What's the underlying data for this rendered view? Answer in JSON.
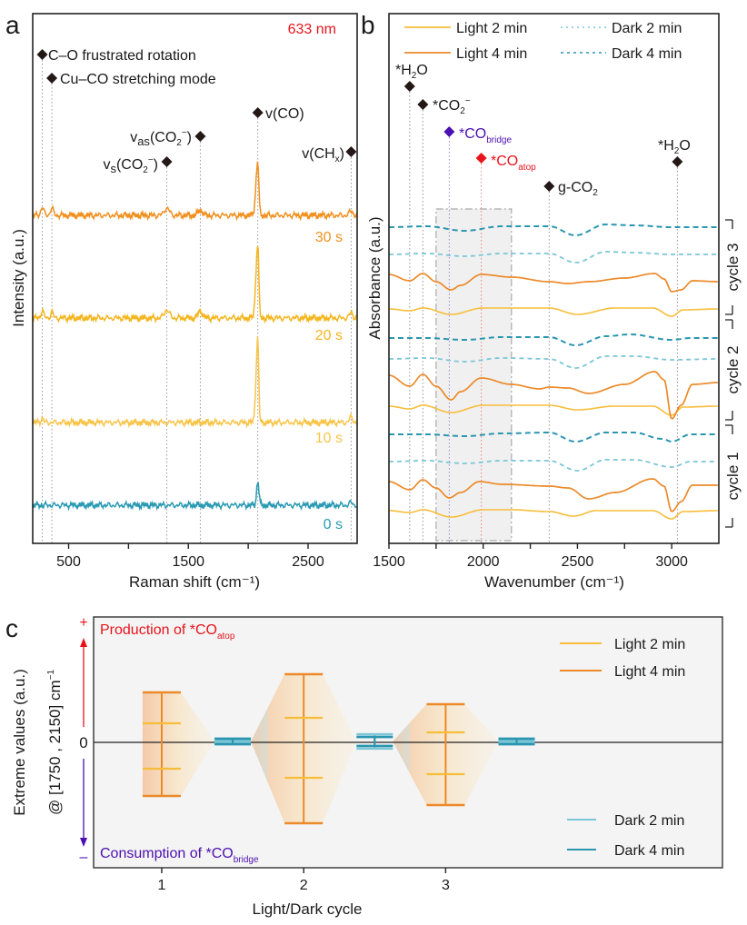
{
  "panel_letters": {
    "a": "a",
    "b": "b",
    "c": "c"
  },
  "colors": {
    "light2": "#f7bd3a",
    "light4": "#ec8a2a",
    "dark2": "#7cc6d8",
    "dark4": "#2a96b0",
    "t30": "#f0901e",
    "t20": "#f5b51e",
    "t10": "#f8c447",
    "t0": "#2a9ab3",
    "red": "#e8141c",
    "purple": "#4b10b0",
    "marker": "#231815"
  },
  "chart_data": [
    {
      "type": "line",
      "panel": "a",
      "title": "633 nm",
      "xlabel": "Raman shift (cm⁻¹)",
      "ylabel": "Intensity (a.u.)",
      "xlim": [
        200,
        2910
      ],
      "ylim": [
        -42,
        541
      ],
      "xticks": [
        500,
        1000,
        1500,
        2000,
        2500
      ],
      "xtick_labels": [
        "500",
        "",
        "1500",
        "",
        "2500"
      ],
      "annotations": [
        {
          "x": 280,
          "label": "C–O frustrated rotation",
          "side": "right"
        },
        {
          "x": 360,
          "label": "Cu–CO stretching mode",
          "side": "right"
        },
        {
          "x": 1320,
          "label": "v",
          "sub": "s",
          "rest": "(CO",
          "sub2": "2",
          "sup": "−",
          "close": ")",
          "side": "left"
        },
        {
          "x": 1600,
          "label": "v",
          "sub": "as",
          "rest": "(CO",
          "sub2": "2",
          "sup": "−",
          "close": ")",
          "side": "left"
        },
        {
          "x": 2080,
          "label": "v(CO)",
          "side": "right"
        },
        {
          "x": 2860,
          "label": "v(CH",
          "sub": "x",
          "close": ")",
          "side": "left"
        }
      ],
      "series": [
        {
          "name": "30 s",
          "offset": 319,
          "peaks": [
            [
              280,
              9,
              18
            ],
            [
              360,
              8,
              18
            ],
            [
              1320,
              8,
              30
            ],
            [
              1600,
              6,
              25
            ],
            [
              2080,
              59,
              12
            ],
            [
              2860,
              5,
              20
            ]
          ]
        },
        {
          "name": "20 s",
          "offset": 206,
          "peaks": [
            [
              280,
              9,
              15
            ],
            [
              360,
              7,
              15
            ],
            [
              1320,
              9,
              30
            ],
            [
              1600,
              8,
              25
            ],
            [
              2080,
              82,
              12
            ],
            [
              2860,
              6,
              20
            ]
          ]
        },
        {
          "name": "10 s",
          "offset": 91,
          "peaks": [
            [
              280,
              5,
              15
            ],
            [
              2080,
              93,
              11
            ],
            [
              2860,
              6,
              20
            ]
          ]
        },
        {
          "name": "0 s",
          "offset": 0,
          "peaks": [
            [
              2080,
              26,
              14
            ],
            [
              2860,
              3,
              20
            ]
          ]
        }
      ]
    },
    {
      "type": "line",
      "panel": "b",
      "xlabel": "Wavenumber (cm⁻¹)",
      "ylabel": "Absorbance (a.u.)",
      "xlim": [
        1500,
        3250
      ],
      "ylim": [
        -36,
        547
      ],
      "xticks": [
        1500,
        1750,
        2000,
        2250,
        2500,
        2750,
        3000
      ],
      "xtick_labels": [
        "1500",
        "",
        "2000",
        "",
        "2500",
        "",
        "3000"
      ],
      "highlight_range": [
        1750,
        2150
      ],
      "legend": [
        "Light 2 min",
        "Light 4 min",
        "Dark 2 min",
        "Dark 4 min"
      ],
      "cycles": [
        "cycle 1",
        "cycle 2",
        "cycle 3"
      ],
      "annotations": [
        {
          "x": 1610,
          "label": "*H",
          "sub": "2",
          "rest": "O",
          "color": "marker"
        },
        {
          "x": 1680,
          "label": "*CO",
          "sub": "2",
          "sup": "−",
          "color": "marker"
        },
        {
          "x": 1820,
          "label": "*CO",
          "sub": "bridge",
          "color": "purple"
        },
        {
          "x": 1990,
          "label": "*CO",
          "sub": "atop",
          "color": "red"
        },
        {
          "x": 2350,
          "label": "g-CO",
          "sub": "2",
          "color": "marker"
        },
        {
          "x": 3030,
          "label": "*H",
          "sub": "2",
          "rest": "O",
          "color": "marker"
        }
      ],
      "series": [
        {
          "name": "Light 2 min",
          "cycle": 1,
          "offset": 0,
          "points": [
            [
              1500,
              0
            ],
            [
              1610,
              -2
            ],
            [
              1680,
              1
            ],
            [
              1830,
              -7
            ],
            [
              2000,
              1
            ],
            [
              2150,
              1
            ],
            [
              2350,
              -1
            ],
            [
              2480,
              -6
            ],
            [
              2600,
              0
            ],
            [
              2900,
              0
            ],
            [
              3000,
              -9
            ],
            [
              3060,
              -1
            ],
            [
              3250,
              0
            ]
          ]
        },
        {
          "name": "Light 4 min",
          "cycle": 1,
          "offset": 32,
          "points": [
            [
              1500,
              0
            ],
            [
              1610,
              -9
            ],
            [
              1680,
              2
            ],
            [
              1750,
              -7
            ],
            [
              1820,
              -18
            ],
            [
              1880,
              -12
            ],
            [
              1980,
              0
            ],
            [
              2100,
              -3
            ],
            [
              2350,
              -5
            ],
            [
              2450,
              -7
            ],
            [
              2560,
              -19
            ],
            [
              2700,
              -12
            ],
            [
              2900,
              3
            ],
            [
              2960,
              -5
            ],
            [
              3000,
              -33
            ],
            [
              3050,
              -22
            ],
            [
              3110,
              -4
            ],
            [
              3250,
              -4
            ]
          ]
        },
        {
          "name": "Dark 2 min",
          "cycle": 1,
          "offset": 54,
          "points": [
            [
              1500,
              0
            ],
            [
              1700,
              1
            ],
            [
              1900,
              -2
            ],
            [
              2100,
              1
            ],
            [
              2350,
              1
            ],
            [
              2500,
              -10
            ],
            [
              2650,
              2
            ],
            [
              2800,
              2
            ],
            [
              3000,
              -6
            ],
            [
              3100,
              0
            ],
            [
              3250,
              0
            ]
          ]
        },
        {
          "name": "Dark 4 min",
          "cycle": 1,
          "offset": 84,
          "points": [
            [
              1500,
              0
            ],
            [
              1700,
              0
            ],
            [
              1900,
              -2
            ],
            [
              2100,
              1
            ],
            [
              2350,
              2
            ],
            [
              2490,
              -8
            ],
            [
              2650,
              2
            ],
            [
              2800,
              2
            ],
            [
              2950,
              -5
            ],
            [
              3000,
              -8
            ],
            [
              3100,
              0
            ],
            [
              3250,
              0
            ]
          ]
        },
        {
          "name": "Light 2 min",
          "cycle": 2,
          "offset": 115,
          "points": [
            [
              1500,
              0
            ],
            [
              1610,
              -3
            ],
            [
              1680,
              1
            ],
            [
              1830,
              -7
            ],
            [
              2000,
              1
            ],
            [
              2150,
              1
            ],
            [
              2350,
              1
            ],
            [
              2500,
              -4
            ],
            [
              2700,
              0
            ],
            [
              2900,
              0
            ],
            [
              3000,
              -10
            ],
            [
              3060,
              -1
            ],
            [
              3250,
              0
            ]
          ]
        },
        {
          "name": "Light 4 min",
          "cycle": 2,
          "offset": 149,
          "points": [
            [
              1500,
              0
            ],
            [
              1610,
              -12
            ],
            [
              1680,
              1
            ],
            [
              1750,
              -12
            ],
            [
              1830,
              -27
            ],
            [
              1880,
              -18
            ],
            [
              1990,
              -3
            ],
            [
              2150,
              -10
            ],
            [
              2300,
              -15
            ],
            [
              2350,
              -13
            ],
            [
              2450,
              -14
            ],
            [
              2560,
              -20
            ],
            [
              2750,
              -10
            ],
            [
              2910,
              4
            ],
            [
              2960,
              -5
            ],
            [
              3000,
              -48
            ],
            [
              3050,
              -33
            ],
            [
              3110,
              -10
            ],
            [
              3250,
              -8
            ]
          ]
        },
        {
          "name": "Dark 2 min",
          "cycle": 2,
          "offset": 167,
          "points": [
            [
              1500,
              0
            ],
            [
              1700,
              1
            ],
            [
              1900,
              -3
            ],
            [
              2100,
              1
            ],
            [
              2350,
              0
            ],
            [
              2490,
              -10
            ],
            [
              2650,
              3
            ],
            [
              2800,
              3
            ],
            [
              3000,
              -1
            ],
            [
              3250,
              0
            ]
          ]
        },
        {
          "name": "Dark 4 min",
          "cycle": 2,
          "offset": 190,
          "points": [
            [
              1500,
              0
            ],
            [
              1700,
              0
            ],
            [
              1900,
              -2
            ],
            [
              2100,
              1
            ],
            [
              2350,
              1
            ],
            [
              2490,
              -8
            ],
            [
              2650,
              2
            ],
            [
              2780,
              4
            ],
            [
              3000,
              -2
            ],
            [
              3100,
              0
            ],
            [
              3250,
              0
            ]
          ]
        },
        {
          "name": "Light 2 min",
          "cycle": 3,
          "offset": 222,
          "points": [
            [
              1500,
              0
            ],
            [
              1610,
              -2
            ],
            [
              1680,
              1
            ],
            [
              1830,
              -6
            ],
            [
              2000,
              1
            ],
            [
              2150,
              1
            ],
            [
              2350,
              1
            ],
            [
              2500,
              -6
            ],
            [
              2700,
              1
            ],
            [
              2900,
              1
            ],
            [
              3000,
              -8
            ],
            [
              3060,
              -1
            ],
            [
              3250,
              0
            ]
          ]
        },
        {
          "name": "Light 4 min",
          "cycle": 3,
          "offset": 260,
          "points": [
            [
              1500,
              0
            ],
            [
              1610,
              -7
            ],
            [
              1680,
              1
            ],
            [
              1750,
              -8
            ],
            [
              1830,
              -17
            ],
            [
              1880,
              -12
            ],
            [
              1990,
              0
            ],
            [
              2150,
              -3
            ],
            [
              2350,
              -8
            ],
            [
              2450,
              -10
            ],
            [
              2560,
              -8
            ],
            [
              2750,
              -4
            ],
            [
              2910,
              1
            ],
            [
              2960,
              -5
            ],
            [
              3000,
              -19
            ],
            [
              3050,
              -17
            ],
            [
              3110,
              -7
            ],
            [
              3250,
              -8
            ]
          ]
        },
        {
          "name": "Dark 2 min",
          "cycle": 3,
          "offset": 282,
          "points": [
            [
              1500,
              0
            ],
            [
              1700,
              1
            ],
            [
              1900,
              -2
            ],
            [
              2100,
              1
            ],
            [
              2350,
              1
            ],
            [
              2490,
              -9
            ],
            [
              2650,
              3
            ],
            [
              2800,
              2
            ],
            [
              3000,
              0
            ],
            [
              3250,
              0
            ]
          ]
        },
        {
          "name": "Dark 4 min",
          "cycle": 3,
          "offset": 312,
          "points": [
            [
              1500,
              0
            ],
            [
              1700,
              1
            ],
            [
              1900,
              -4
            ],
            [
              2100,
              1
            ],
            [
              2350,
              1
            ],
            [
              2490,
              -9
            ],
            [
              2650,
              3
            ],
            [
              2800,
              2
            ],
            [
              3000,
              0
            ],
            [
              3250,
              0
            ]
          ]
        }
      ]
    },
    {
      "type": "errorbar",
      "panel": "c",
      "xlabel": "Light/Dark cycle",
      "ylabel": "Extreme values (a.u.)",
      "ylabel2": "@ [1750 , 2150] cm",
      "ylabel2_sup": "−1",
      "xlim": [
        0.52,
        4.95
      ],
      "ylim": [
        -1.39,
        1.37
      ],
      "xticks": [
        1,
        2,
        3
      ],
      "xtick_labels": [
        "1",
        "2",
        "3"
      ],
      "ytick_labels": {
        "plus": "+",
        "zero": "0",
        "minus": "–"
      },
      "top_note": {
        "text": "Production of *CO",
        "sub": "atop"
      },
      "bottom_note": {
        "text": "Consumption of *CO",
        "sub": "bridge"
      },
      "legend": [
        "Light 2 min",
        "Light 4 min",
        "Dark 2 min",
        "Dark 4 min"
      ],
      "series": [
        {
          "name": "Light 4 min",
          "x": [
            1,
            2,
            3
          ],
          "min": [
            -0.6,
            -0.9,
            -0.7
          ],
          "max": [
            0.54,
            0.74,
            0.41
          ]
        },
        {
          "name": "Light 2 min",
          "x": [
            1,
            2,
            3
          ],
          "min": [
            -0.3,
            -0.4,
            -0.36
          ],
          "max": [
            0.2,
            0.26,
            0.1
          ]
        },
        {
          "name": "Dark 2 min",
          "x": [
            1.5,
            2.5,
            3.5
          ],
          "min": [
            -0.01,
            -0.08,
            -0.01
          ],
          "max": [
            0.01,
            0.08,
            0.01
          ]
        },
        {
          "name": "Dark 4 min",
          "x": [
            1.5,
            2.5,
            3.5
          ],
          "min": [
            -0.03,
            -0.05,
            -0.03
          ],
          "max": [
            0.03,
            0.05,
            0.03
          ]
        }
      ]
    }
  ]
}
